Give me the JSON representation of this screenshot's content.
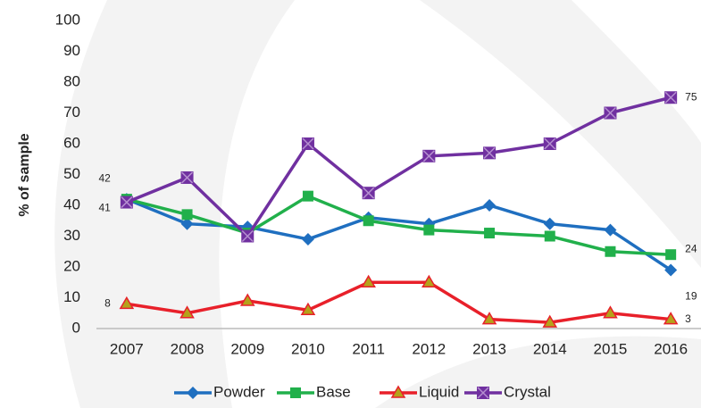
{
  "chart_data": {
    "type": "line",
    "y_label": "% of sample",
    "categories": [
      "2007",
      "2008",
      "2009",
      "2010",
      "2011",
      "2012",
      "2013",
      "2014",
      "2015",
      "2016"
    ],
    "series": [
      {
        "name": "Powder",
        "color": "#1f6fc0",
        "marker": "diamond",
        "values": [
          42,
          34,
          33,
          29,
          36,
          34,
          40,
          34,
          32,
          19
        ],
        "value_labels": [
          "42",
          null,
          null,
          null,
          null,
          null,
          null,
          null,
          null,
          "19"
        ]
      },
      {
        "name": "Base",
        "color": "#21b04b",
        "marker": "square",
        "values": [
          42,
          37,
          31,
          43,
          35,
          32,
          31,
          30,
          25,
          24
        ],
        "value_labels": [
          null,
          null,
          null,
          null,
          null,
          null,
          null,
          null,
          null,
          "24"
        ]
      },
      {
        "name": "Liquid",
        "color": "#e8202a",
        "marker": "triangle",
        "values": [
          8,
          5,
          9,
          6,
          15,
          15,
          3,
          2,
          5,
          3
        ],
        "value_labels": [
          "8",
          null,
          null,
          null,
          null,
          null,
          null,
          null,
          null,
          "3"
        ]
      },
      {
        "name": "Crystal",
        "color": "#7030a0",
        "marker": "crossed-square",
        "values": [
          41,
          49,
          30,
          60,
          44,
          56,
          57,
          60,
          70,
          75
        ],
        "value_labels": [
          "41",
          null,
          null,
          null,
          null,
          null,
          null,
          null,
          null,
          "75"
        ]
      }
    ],
    "ylim": [
      0,
      100
    ],
    "yticks": [
      0,
      10,
      20,
      30,
      40,
      50,
      60,
      70,
      80,
      90,
      100
    ],
    "grid": false,
    "legend": "bottom"
  }
}
